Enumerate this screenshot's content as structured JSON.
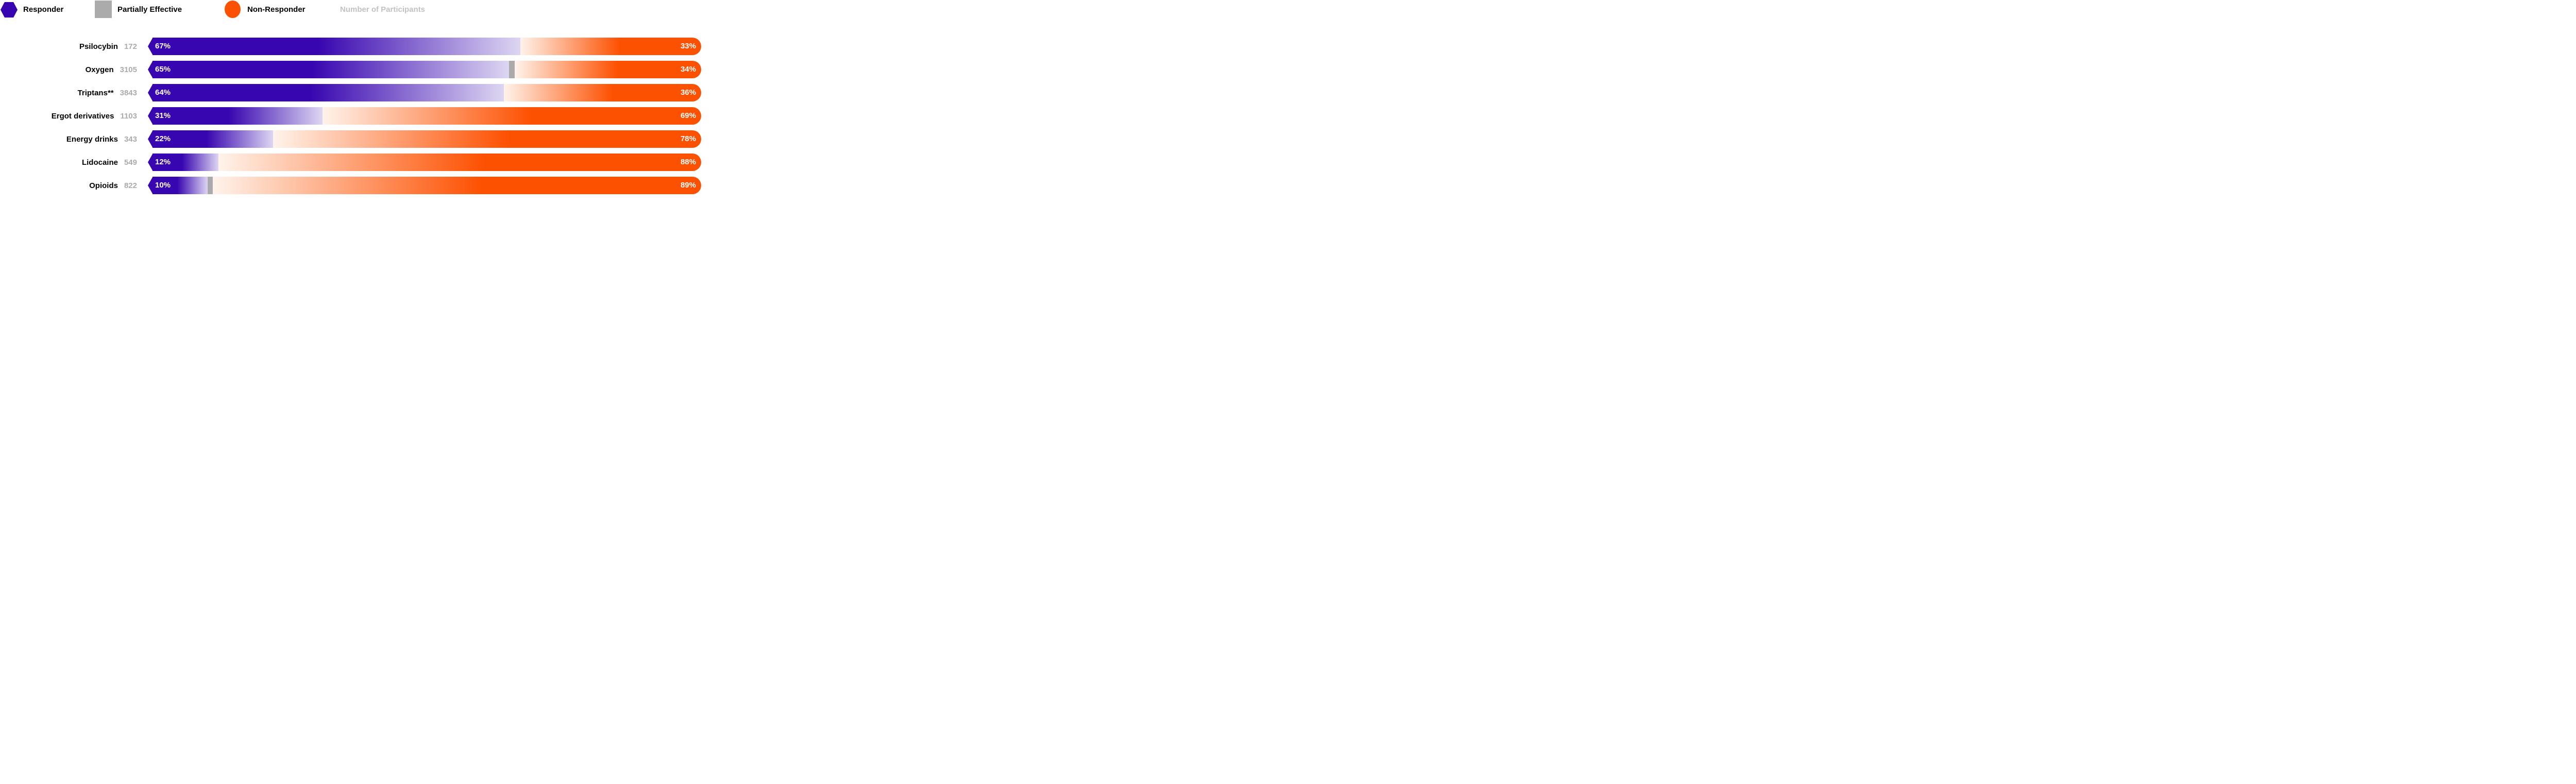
{
  "legend": {
    "items": [
      {
        "label": "Responder",
        "swatch": "hexagon"
      },
      {
        "label": "Partially Effective",
        "swatch": "square"
      },
      {
        "label": "Non-Responder",
        "swatch": "circle"
      },
      {
        "label": "Number of Participants",
        "swatch": "none"
      }
    ]
  },
  "colors": {
    "responder_purple": "#3806B0",
    "responder_fade_end": "#DDD6F2",
    "partially_effective_gray": "#ABABAB",
    "non_responder_orange": "#FD5102",
    "non_responder_fade_start": "#FFF3EB",
    "participant_count_gray": "#ABABAB",
    "legend_muted_text": "#C2C2C2",
    "label_black": "#000000",
    "background": "#FFFFFF"
  },
  "chart_data": {
    "type": "bar",
    "orientation": "horizontal",
    "stacked": true,
    "unit": "percent",
    "axis_range": [
      0,
      100
    ],
    "grid": false,
    "legend_position": "top",
    "categories": [
      "Psilocybin",
      "Oxygen",
      "Triptans**",
      "Ergot derivatives",
      "Energy drinks",
      "Lidocaine",
      "Opioids"
    ],
    "participants": [
      172,
      3105,
      3843,
      1103,
      343,
      549,
      822
    ],
    "series": [
      {
        "name": "Responder",
        "values": [
          67,
          65,
          64,
          31,
          22,
          12,
          10
        ]
      },
      {
        "name": "Partially Effective",
        "values": [
          0,
          1,
          0,
          0,
          0,
          0,
          1
        ]
      },
      {
        "name": "Non-Responder",
        "values": [
          33,
          34,
          36,
          69,
          78,
          88,
          89
        ]
      }
    ],
    "bar_value_labels": {
      "responder": [
        "67%",
        "65%",
        "64%",
        "31%",
        "22%",
        "12%",
        "10%"
      ],
      "non_responder": [
        "33%",
        "34%",
        "36%",
        "69%",
        "78%",
        "88%",
        "89%"
      ]
    }
  }
}
